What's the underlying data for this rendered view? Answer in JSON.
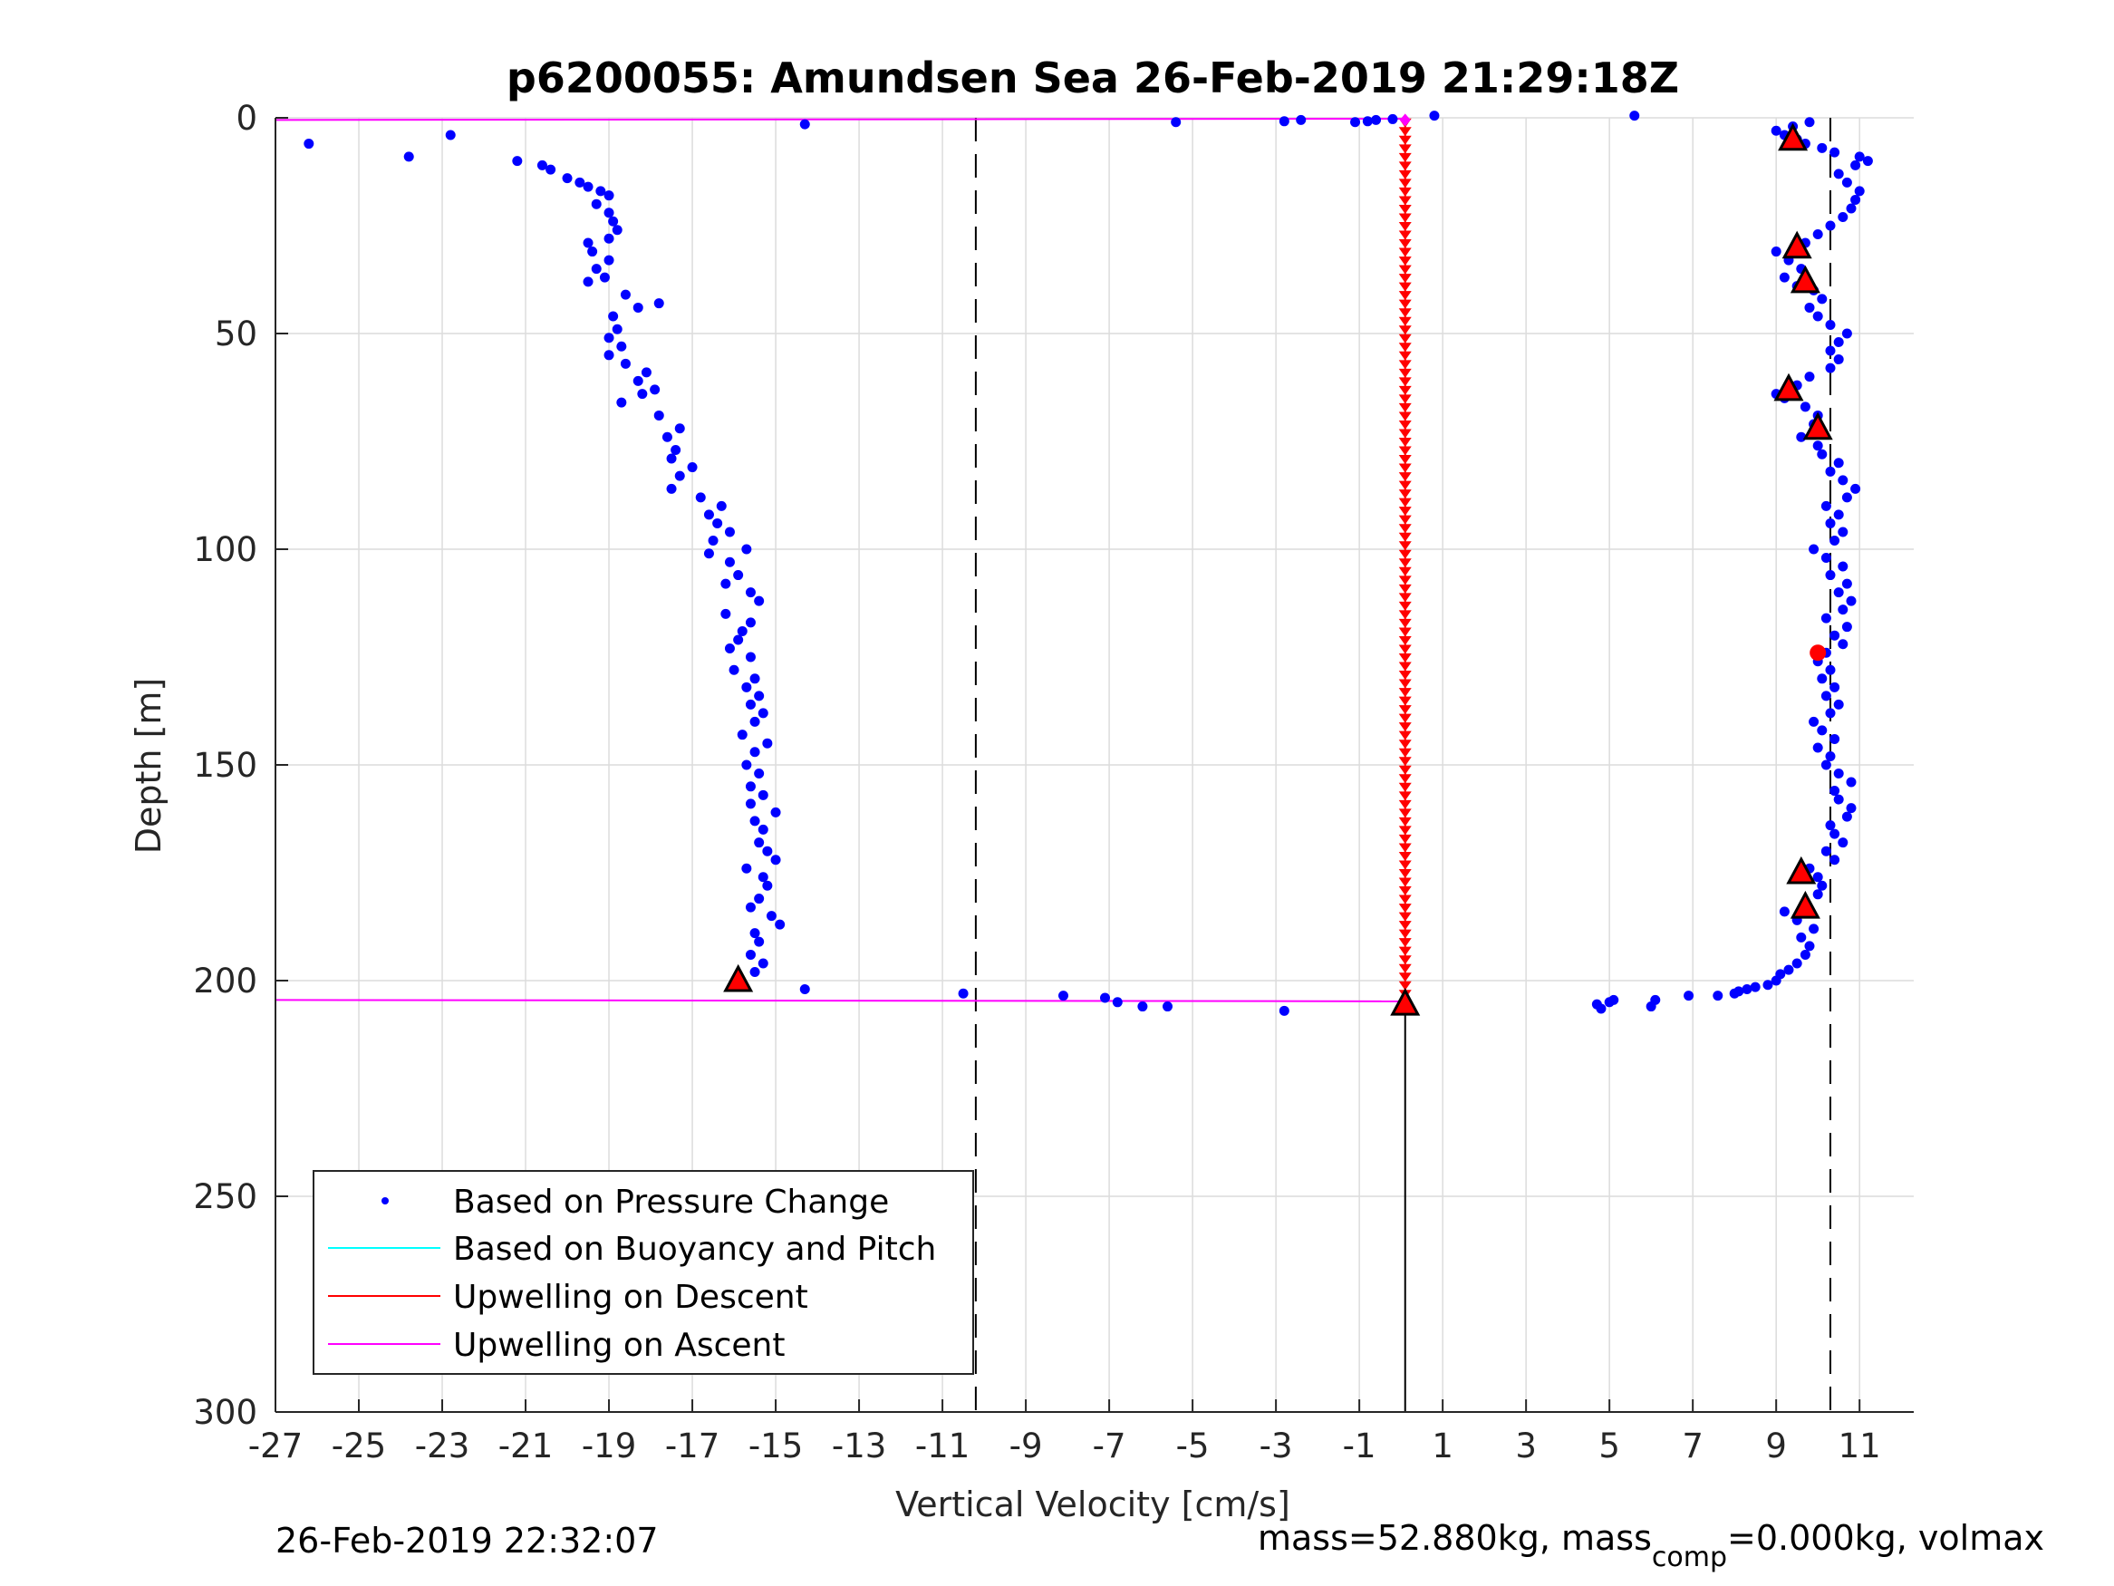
{
  "chart_data": {
    "type": "scatter",
    "title": "p6200055: Amundsen Sea 26-Feb-2019 21:29:18Z",
    "xlabel": "Vertical Velocity [cm/s]",
    "ylabel": "Depth [m]",
    "xlim": [
      -27,
      12.3
    ],
    "ylim": [
      300,
      0
    ],
    "y_reversed": true,
    "grid": true,
    "xticks": [
      "-27",
      "-25",
      "-23",
      "-21",
      "-19",
      "-17",
      "-15",
      "-13",
      "-11",
      "-9",
      "-7",
      "-5",
      "-3",
      "-1",
      "1",
      "3",
      "5",
      "7",
      "9",
      "11"
    ],
    "xtick_values": [
      -27,
      -25,
      -23,
      -21,
      -19,
      -17,
      -15,
      -13,
      -11,
      -9,
      -7,
      -5,
      -3,
      -1,
      1,
      3,
      5,
      7,
      9,
      11
    ],
    "yticks": [
      "0",
      "50",
      "100",
      "150",
      "200",
      "250",
      "300"
    ],
    "ytick_values": [
      0,
      50,
      100,
      150,
      200,
      250,
      300
    ],
    "legend": {
      "placement": "lower-left",
      "entries": [
        {
          "label": "Based on Pressure Change",
          "color": "#0000ff",
          "style": "dot"
        },
        {
          "label": "Based on Buoyancy and Pitch",
          "color": "#00ffff",
          "style": "line"
        },
        {
          "label": "Upwelling on Descent",
          "color": "#ff0000",
          "style": "line"
        },
        {
          "label": "Upwelling on Ascent",
          "color": "#ff00ff",
          "style": "line"
        }
      ]
    },
    "colors": {
      "pressure": "#0000ff",
      "descent": "#ff0000",
      "ascent": "#ff00ff",
      "marker_fill": "#ff0000",
      "grid": "#dcdcdc"
    },
    "reference_lines": {
      "dashed_x": [
        -10.2,
        10.3
      ],
      "solid_vertical": {
        "x": 0.1,
        "y_from": 205,
        "y_to": 300
      }
    },
    "ascent_lines": [
      {
        "x": [
          -27,
          0.1
        ],
        "y": [
          0.5,
          0.2
        ]
      },
      {
        "x": [
          -27,
          0.1
        ],
        "y": [
          204.5,
          204.8
        ]
      }
    ],
    "descent_upwelling": {
      "x": 0.1,
      "y_from": 1,
      "y_to": 204,
      "step": 2
    },
    "descent_points": [
      [
        -26.2,
        6
      ],
      [
        -23.8,
        9
      ],
      [
        -22.8,
        4
      ],
      [
        -21.2,
        10
      ],
      [
        -20.6,
        11
      ],
      [
        -20.4,
        12
      ],
      [
        -20.0,
        14
      ],
      [
        -19.7,
        15
      ],
      [
        -19.5,
        16
      ],
      [
        -19.2,
        17
      ],
      [
        -19.0,
        18
      ],
      [
        -19.3,
        20
      ],
      [
        -19.0,
        22
      ],
      [
        -18.9,
        24
      ],
      [
        -18.8,
        26
      ],
      [
        -19.0,
        28
      ],
      [
        -19.5,
        29
      ],
      [
        -19.4,
        31
      ],
      [
        -19.0,
        33
      ],
      [
        -19.3,
        35
      ],
      [
        -19.1,
        37
      ],
      [
        -19.5,
        38
      ],
      [
        -18.6,
        41
      ],
      [
        -17.8,
        43
      ],
      [
        -18.3,
        44
      ],
      [
        -18.9,
        46
      ],
      [
        -18.8,
        49
      ],
      [
        -19.0,
        51
      ],
      [
        -18.7,
        53
      ],
      [
        -19.0,
        55
      ],
      [
        -18.6,
        57
      ],
      [
        -18.1,
        59
      ],
      [
        -18.3,
        61
      ],
      [
        -17.9,
        63
      ],
      [
        -18.2,
        64
      ],
      [
        -18.7,
        66
      ],
      [
        -17.8,
        69
      ],
      [
        -17.3,
        72
      ],
      [
        -17.6,
        74
      ],
      [
        -17.4,
        77
      ],
      [
        -17.5,
        79
      ],
      [
        -17.0,
        81
      ],
      [
        -17.3,
        83
      ],
      [
        -17.5,
        86
      ],
      [
        -16.8,
        88
      ],
      [
        -16.3,
        90
      ],
      [
        -16.6,
        92
      ],
      [
        -16.4,
        94
      ],
      [
        -16.1,
        96
      ],
      [
        -16.5,
        98
      ],
      [
        -15.7,
        100
      ],
      [
        -16.6,
        101
      ],
      [
        -16.1,
        103
      ],
      [
        -15.9,
        106
      ],
      [
        -16.2,
        108
      ],
      [
        -15.6,
        110
      ],
      [
        -15.4,
        112
      ],
      [
        -16.2,
        115
      ],
      [
        -15.6,
        117
      ],
      [
        -15.8,
        119
      ],
      [
        -15.9,
        121
      ],
      [
        -16.1,
        123
      ],
      [
        -15.6,
        125
      ],
      [
        -16.0,
        128
      ],
      [
        -15.5,
        130
      ],
      [
        -15.7,
        132
      ],
      [
        -15.4,
        134
      ],
      [
        -15.6,
        136
      ],
      [
        -15.3,
        138
      ],
      [
        -15.5,
        140
      ],
      [
        -15.8,
        143
      ],
      [
        -15.2,
        145
      ],
      [
        -15.5,
        147
      ],
      [
        -15.7,
        150
      ],
      [
        -15.4,
        152
      ],
      [
        -15.6,
        155
      ],
      [
        -15.3,
        157
      ],
      [
        -15.6,
        159
      ],
      [
        -15.0,
        161
      ],
      [
        -15.5,
        163
      ],
      [
        -15.3,
        165
      ],
      [
        -15.4,
        168
      ],
      [
        -15.2,
        170
      ],
      [
        -15.0,
        172
      ],
      [
        -15.7,
        174
      ],
      [
        -15.3,
        176
      ],
      [
        -15.2,
        178
      ],
      [
        -15.4,
        181
      ],
      [
        -15.6,
        183
      ],
      [
        -15.1,
        185
      ],
      [
        -14.9,
        187
      ],
      [
        -15.5,
        189
      ],
      [
        -15.4,
        191
      ],
      [
        -15.6,
        194
      ],
      [
        -15.3,
        196
      ],
      [
        -15.5,
        198
      ],
      [
        -15.9,
        199
      ],
      [
        -14.3,
        202
      ],
      [
        -10.5,
        203
      ],
      [
        -8.1,
        203.5
      ],
      [
        -7.1,
        204
      ],
      [
        -6.8,
        205
      ],
      [
        -6.2,
        206
      ],
      [
        -5.6,
        206
      ],
      [
        -2.8,
        207
      ]
    ],
    "top_points": [
      [
        -14.3,
        1.5
      ],
      [
        -5.4,
        1
      ],
      [
        -2.8,
        0.8
      ],
      [
        -2.4,
        0.5
      ],
      [
        -1.1,
        1
      ],
      [
        -0.8,
        0.8
      ],
      [
        -0.6,
        0.5
      ],
      [
        -0.2,
        0.3
      ],
      [
        0.8,
        -0.5
      ],
      [
        5.6,
        -0.5
      ]
    ],
    "ascent_points": [
      [
        4.7,
        205.5
      ],
      [
        4.8,
        206.5
      ],
      [
        5.0,
        205
      ],
      [
        5.1,
        204.5
      ],
      [
        6.0,
        206
      ],
      [
        6.1,
        204.5
      ],
      [
        6.9,
        203.5
      ],
      [
        7.6,
        203.5
      ],
      [
        8.0,
        203
      ],
      [
        8.1,
        202.5
      ],
      [
        8.3,
        202
      ],
      [
        8.5,
        201.5
      ],
      [
        8.8,
        201
      ],
      [
        9.0,
        200
      ],
      [
        9.1,
        198.5
      ],
      [
        9.3,
        197.5
      ],
      [
        9.5,
        196
      ],
      [
        9.7,
        194
      ],
      [
        9.8,
        192
      ],
      [
        9.6,
        190
      ],
      [
        9.9,
        188
      ],
      [
        9.5,
        186
      ],
      [
        9.2,
        184
      ],
      [
        9.7,
        182
      ],
      [
        10.0,
        180
      ],
      [
        10.1,
        178
      ],
      [
        10.0,
        176
      ],
      [
        9.8,
        174
      ],
      [
        10.4,
        172
      ],
      [
        10.2,
        170
      ],
      [
        10.6,
        168
      ],
      [
        10.4,
        166
      ],
      [
        10.3,
        164
      ],
      [
        10.7,
        162
      ],
      [
        10.8,
        160
      ],
      [
        10.5,
        158
      ],
      [
        10.4,
        156
      ],
      [
        10.8,
        154
      ],
      [
        10.5,
        152
      ],
      [
        10.2,
        150
      ],
      [
        10.3,
        148
      ],
      [
        10.0,
        146
      ],
      [
        10.4,
        144
      ],
      [
        10.1,
        142
      ],
      [
        9.9,
        140
      ],
      [
        10.3,
        138
      ],
      [
        10.5,
        136
      ],
      [
        10.2,
        134
      ],
      [
        10.4,
        132
      ],
      [
        10.1,
        130
      ],
      [
        10.3,
        128
      ],
      [
        10.0,
        126
      ],
      [
        10.2,
        124
      ],
      [
        10.6,
        122
      ],
      [
        10.4,
        120
      ],
      [
        10.7,
        118
      ],
      [
        10.2,
        116
      ],
      [
        10.6,
        114
      ],
      [
        10.8,
        112
      ],
      [
        10.5,
        110
      ],
      [
        10.7,
        108
      ],
      [
        10.3,
        106
      ],
      [
        10.6,
        104
      ],
      [
        10.2,
        102
      ],
      [
        9.9,
        100
      ],
      [
        10.4,
        98
      ],
      [
        10.6,
        96
      ],
      [
        10.3,
        94
      ],
      [
        10.5,
        92
      ],
      [
        10.2,
        90
      ],
      [
        10.7,
        88
      ],
      [
        10.9,
        86
      ],
      [
        10.6,
        84
      ],
      [
        10.3,
        82
      ],
      [
        10.5,
        80
      ],
      [
        10.1,
        78
      ],
      [
        10.0,
        76
      ],
      [
        9.6,
        74
      ],
      [
        9.9,
        71
      ],
      [
        10.0,
        69
      ],
      [
        9.7,
        67
      ],
      [
        9.2,
        65
      ],
      [
        9.0,
        64
      ],
      [
        9.5,
        62
      ],
      [
        9.8,
        60
      ],
      [
        10.3,
        58
      ],
      [
        10.5,
        56
      ],
      [
        10.3,
        54
      ],
      [
        10.5,
        52
      ],
      [
        10.7,
        50
      ],
      [
        10.3,
        48
      ],
      [
        10.0,
        46
      ],
      [
        9.8,
        44
      ],
      [
        10.1,
        42
      ],
      [
        9.9,
        40
      ],
      [
        9.5,
        39
      ],
      [
        9.2,
        37
      ],
      [
        9.6,
        35
      ],
      [
        9.3,
        33
      ],
      [
        9.0,
        31
      ],
      [
        9.7,
        29
      ],
      [
        10.0,
        27
      ],
      [
        10.3,
        25
      ],
      [
        10.6,
        23
      ],
      [
        10.8,
        21
      ],
      [
        10.9,
        19
      ],
      [
        11.0,
        17
      ],
      [
        10.7,
        15
      ],
      [
        10.5,
        13
      ],
      [
        10.9,
        11
      ],
      [
        11.2,
        10
      ],
      [
        11.0,
        9
      ],
      [
        10.4,
        8
      ],
      [
        10.1,
        7
      ],
      [
        9.7,
        6
      ],
      [
        9.5,
        5
      ],
      [
        9.2,
        4
      ],
      [
        9.0,
        3
      ],
      [
        9.4,
        2
      ],
      [
        9.8,
        1
      ]
    ],
    "triangle_markers": [
      [
        -15.9,
        200
      ],
      [
        0.1,
        205.5
      ],
      [
        9.4,
        5
      ],
      [
        9.5,
        30
      ],
      [
        9.7,
        38
      ],
      [
        9.3,
        63
      ],
      [
        10.0,
        72
      ],
      [
        9.6,
        175
      ],
      [
        9.7,
        183
      ]
    ],
    "red_dot": [
      10.0,
      124
    ],
    "top_markers": [
      [
        0.1,
        0.5
      ]
    ],
    "footer": {
      "timestamp": "26-Feb-2019 22:32:07",
      "mass_prefix": "mass=52.880kg, mass",
      "mass_sub": "comp",
      "mass_suffix": "=0.000kg, volmax"
    }
  }
}
